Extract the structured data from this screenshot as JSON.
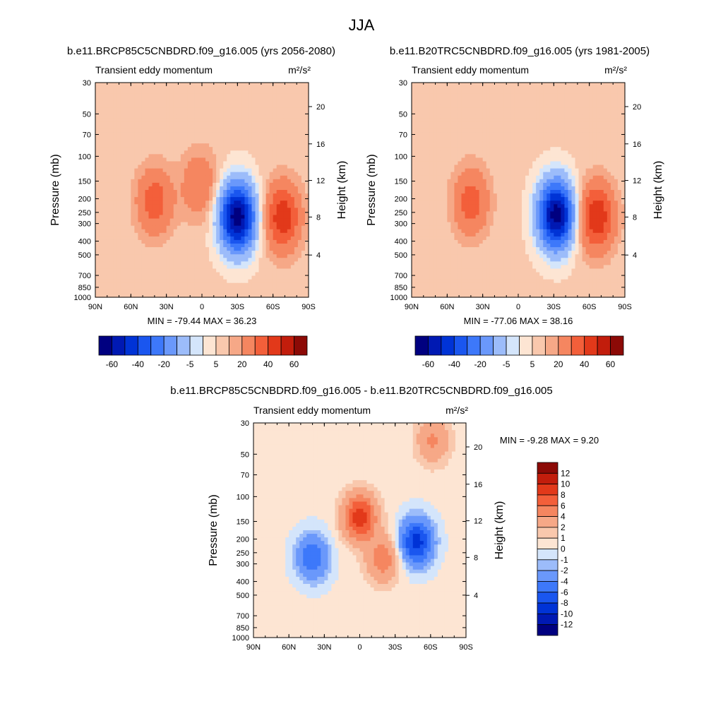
{
  "figure_title": "JJA",
  "colors": {
    "neg": [
      "#000080",
      "#0019b3",
      "#0033d6",
      "#1a56ef",
      "#3d78fa",
      "#6a98fb",
      "#9cbcfa",
      "#d4e5fb"
    ],
    "pos": [
      "#fde5d3",
      "#f9c8ad",
      "#f6a887",
      "#f58660",
      "#f35f3a",
      "#e2391a",
      "#c21d0c",
      "#8c0a06"
    ],
    "background": "#ffffff"
  },
  "chart_data": [
    {
      "type": "heatmap",
      "title": "b.e11.BRCP85C5CNBDRD.f09_g16.005 (yrs 2056-2080)",
      "left_label": "Transient eddy momentum",
      "units": "m²/s²",
      "ylabel": "Pressure (mb)",
      "ylabel_right": "Height (km)",
      "x_ticks": [
        "90N",
        "60N",
        "30N",
        "0",
        "30S",
        "60S",
        "90S"
      ],
      "y_ticks": [
        "30",
        "50",
        "70",
        "100",
        "150",
        "200",
        "250",
        "300",
        "400",
        "500",
        "700",
        "850",
        "1000"
      ],
      "y_right_ticks": [
        "4",
        "8",
        "12",
        "16",
        "20"
      ],
      "stats": "MIN = -79.44  MAX = 36.23",
      "min": -79.44,
      "max": 36.23,
      "colorbar": {
        "orientation": "horizontal",
        "labels": [
          "-60",
          "-40",
          "-20",
          "-5",
          "5",
          "20",
          "40",
          "60"
        ]
      },
      "features": [
        {
          "lat": -30,
          "p": 270,
          "value": -79
        },
        {
          "lat": 40,
          "p": 210,
          "value": 25
        },
        {
          "lat": 2,
          "p": 160,
          "value": 18
        },
        {
          "lat": -68,
          "p": 270,
          "value": 36
        }
      ]
    },
    {
      "type": "heatmap",
      "title": "b.e11.B20TRC5CNBDRD.f09_g16.005 (yrs 1981-2005)",
      "left_label": "Transient eddy momentum",
      "units": "m²/s²",
      "ylabel": "Pressure (mb)",
      "ylabel_right": "Height (km)",
      "x_ticks": [
        "90N",
        "60N",
        "30N",
        "0",
        "30S",
        "60S",
        "90S"
      ],
      "y_ticks": [
        "30",
        "50",
        "70",
        "100",
        "150",
        "200",
        "250",
        "300",
        "400",
        "500",
        "700",
        "850",
        "1000"
      ],
      "y_right_ticks": [
        "4",
        "8",
        "12",
        "16",
        "20"
      ],
      "stats": "MIN = -77.06  MAX = 38.16",
      "min": -77.06,
      "max": 38.16,
      "colorbar": {
        "orientation": "horizontal",
        "labels": [
          "-60",
          "-40",
          "-20",
          "-5",
          "5",
          "20",
          "40",
          "60"
        ]
      },
      "features": [
        {
          "lat": -32,
          "p": 260,
          "value": -77
        },
        {
          "lat": 40,
          "p": 210,
          "value": 24
        },
        {
          "lat": -66,
          "p": 270,
          "value": 38
        }
      ]
    },
    {
      "type": "heatmap",
      "title": "b.e11.BRCP85C5CNBDRD.f09_g16.005 - b.e11.B20TRC5CNBDRD.f09_g16.005",
      "left_label": "Transient eddy momentum",
      "units": "m²/s²",
      "ylabel": "Pressure (mb)",
      "ylabel_right": "Height (km)",
      "x_ticks": [
        "90N",
        "60N",
        "30N",
        "0",
        "30S",
        "60S",
        "90S"
      ],
      "y_ticks": [
        "30",
        "50",
        "70",
        "100",
        "150",
        "200",
        "250",
        "300",
        "400",
        "500",
        "700",
        "850",
        "1000"
      ],
      "y_right_ticks": [
        "4",
        "8",
        "12",
        "16",
        "20"
      ],
      "stats": "MIN =  -9.28  MAX =   9.20",
      "min": -9.28,
      "max": 9.2,
      "colorbar": {
        "orientation": "vertical",
        "labels": [
          "12",
          "10",
          "8",
          "6",
          "4",
          "2",
          "1",
          "0",
          "-1",
          "-2",
          "-4",
          "-6",
          "-8",
          "-10",
          "-12"
        ]
      },
      "features": [
        {
          "lat": -48,
          "p": 210,
          "value": -9.3
        },
        {
          "lat": 0,
          "p": 140,
          "value": 9.2
        },
        {
          "lat": -20,
          "p": 280,
          "value": 5
        },
        {
          "lat": 40,
          "p": 270,
          "value": -6
        },
        {
          "lat": -62,
          "p": 40,
          "value": 4
        }
      ]
    }
  ]
}
